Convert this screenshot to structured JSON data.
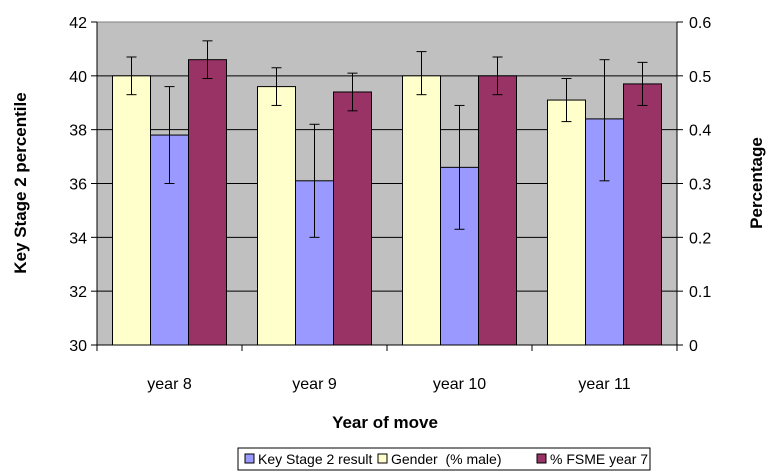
{
  "chart_data": {
    "type": "bar",
    "xlabel": "Year of move",
    "ylabel_left": "Key Stage 2 percentile",
    "ylabel_right": "Percentage",
    "categories": [
      "year 8",
      "year 9",
      "year 10",
      "year 11"
    ],
    "left_axis": {
      "min": 30,
      "max": 42,
      "ticks": [
        30,
        32,
        34,
        36,
        38,
        40,
        42
      ]
    },
    "right_axis": {
      "min": 0,
      "max": 0.6,
      "ticks": [
        0,
        0.1,
        0.2,
        0.3,
        0.4,
        0.5,
        0.6
      ]
    },
    "plot_background": "#C0C0C0",
    "grid": true,
    "legend_position": "bottom",
    "series": [
      {
        "name": "Key Stage 2 result",
        "axis": "left",
        "color": "#9999FF",
        "values": [
          37.8,
          36.1,
          36.6,
          38.4
        ],
        "error_low": [
          36.0,
          34.0,
          34.3,
          36.1
        ],
        "error_high": [
          39.6,
          38.2,
          38.9,
          40.6
        ]
      },
      {
        "name": "Gender  (% male)",
        "axis": "right",
        "color": "#FFFFCC",
        "values": [
          0.5,
          0.48,
          0.5,
          0.455
        ],
        "error_low": [
          0.465,
          0.445,
          0.465,
          0.415
        ],
        "error_high": [
          0.535,
          0.515,
          0.545,
          0.495
        ]
      },
      {
        "name": "% FSME year 7",
        "axis": "right",
        "color": "#993366",
        "values": [
          0.53,
          0.47,
          0.5,
          0.485
        ],
        "error_low": [
          0.495,
          0.435,
          0.465,
          0.445
        ],
        "error_high": [
          0.565,
          0.505,
          0.535,
          0.525
        ]
      }
    ]
  }
}
